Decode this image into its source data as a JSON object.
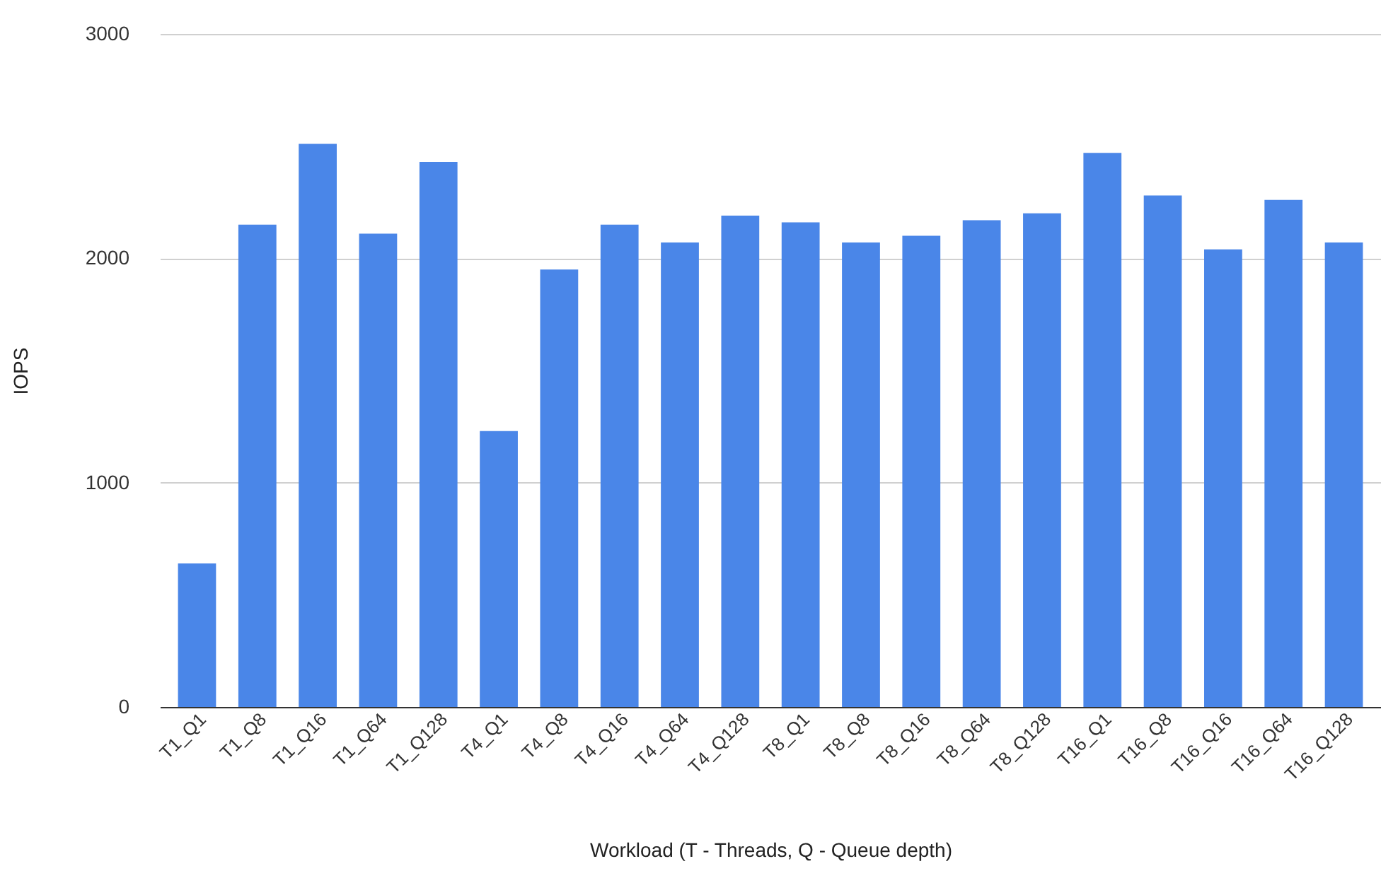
{
  "chart_data": {
    "type": "bar",
    "xlabel": "Workload (T - Threads, Q - Queue depth)",
    "ylabel": "IOPS",
    "categories": [
      "T1_Q1",
      "T1_Q8",
      "T1_Q16",
      "T1_Q64",
      "T1_Q128",
      "T4_Q1",
      "T4_Q8",
      "T4_Q16",
      "T4_Q64",
      "T4_Q128",
      "T8_Q1",
      "T8_Q8",
      "T8_Q16",
      "T8_Q64",
      "T8_Q128",
      "T16_Q1",
      "T16_Q8",
      "T16_Q16",
      "T16_Q64",
      "T16_Q128"
    ],
    "values": [
      640,
      2150,
      2510,
      2110,
      2430,
      1230,
      1950,
      2150,
      2070,
      2190,
      2160,
      2070,
      2100,
      2170,
      2200,
      2470,
      2280,
      2040,
      2260,
      2070
    ],
    "color": "#4a86e8",
    "ylim": [
      0,
      3000
    ],
    "yticks": [
      0,
      1000,
      2000,
      3000
    ],
    "grid": "y"
  }
}
